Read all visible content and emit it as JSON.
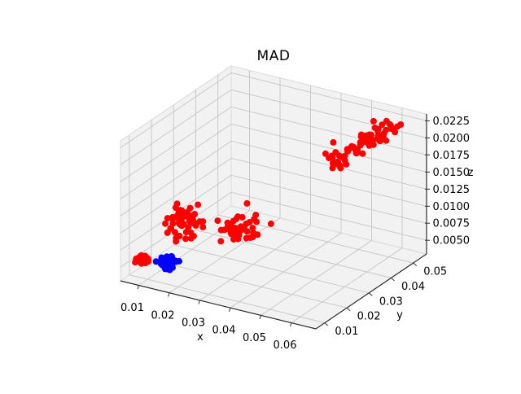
{
  "figure": {
    "background": "#ffffff"
  },
  "chart_data": {
    "type": "scatter",
    "projection": "3d",
    "title": "MAD",
    "xlabel": "x",
    "ylabel": "y",
    "zlabel": "z",
    "xlim": [
      0.004,
      0.068
    ],
    "ylim": [
      0.006,
      0.056
    ],
    "zlim": [
      0.003,
      0.0235
    ],
    "x_tick_values": [
      0.01,
      0.02,
      0.03,
      0.04,
      0.05,
      0.06
    ],
    "x_tick_labels": [
      "0.01",
      "0.02",
      "0.03",
      "0.04",
      "0.05",
      "0.06"
    ],
    "y_tick_values": [
      0.01,
      0.02,
      0.03,
      0.04,
      0.05
    ],
    "y_tick_labels": [
      "0.01",
      "0.02",
      "0.03",
      "0.04",
      "0.05"
    ],
    "z_tick_values": [
      0.005,
      0.0075,
      0.01,
      0.0125,
      0.015,
      0.0175,
      0.02,
      0.0225
    ],
    "z_tick_labels": [
      "0.0050",
      "0.0075",
      "0.0100",
      "0.0125",
      "0.0150",
      "0.0175",
      "0.0200",
      "0.0225"
    ],
    "grid": true,
    "legend": false,
    "marker_radius_px": 4,
    "seed": 11,
    "colors": {
      "pane": "#f2f2f2",
      "pane_edge": "#d9d9d9",
      "grid": "#c9c9c9",
      "spine": "#2f2f2f",
      "tick_text": "#000000",
      "red": "#ff0000",
      "blue": "#0000ff"
    },
    "clusters": [
      {
        "name": "cluster-red-small-left",
        "color": "#ff0000",
        "n": 40,
        "center": [
          0.0085,
          0.01,
          0.0056
        ],
        "sigma": [
          0.0008,
          0.0007,
          0.0003
        ]
      },
      {
        "name": "cluster-blue",
        "color": "#0000ff",
        "n": 60,
        "center": [
          0.0165,
          0.01,
          0.006
        ],
        "sigma": [
          0.0011,
          0.0009,
          0.00035
        ]
      },
      {
        "name": "cluster-red-left-mid",
        "color": "#ff0000",
        "n": 55,
        "center": [
          0.0125,
          0.022,
          0.009
        ],
        "sigma": [
          0.0028,
          0.0022,
          0.0012
        ]
      },
      {
        "name": "cluster-red-center",
        "color": "#ff0000",
        "n": 50,
        "center": [
          0.029,
          0.025,
          0.0092
        ],
        "sigma": [
          0.0026,
          0.002,
          0.0008
        ]
      },
      {
        "name": "cluster-red-upper-right",
        "color": "#ff0000",
        "n": 75,
        "center": [
          0.052,
          0.048,
          0.019
        ],
        "axis": [
          0.0075,
          0.005,
          0.0026
        ],
        "sigma": [
          0.0016,
          0.0013,
          0.0007
        ]
      }
    ]
  }
}
